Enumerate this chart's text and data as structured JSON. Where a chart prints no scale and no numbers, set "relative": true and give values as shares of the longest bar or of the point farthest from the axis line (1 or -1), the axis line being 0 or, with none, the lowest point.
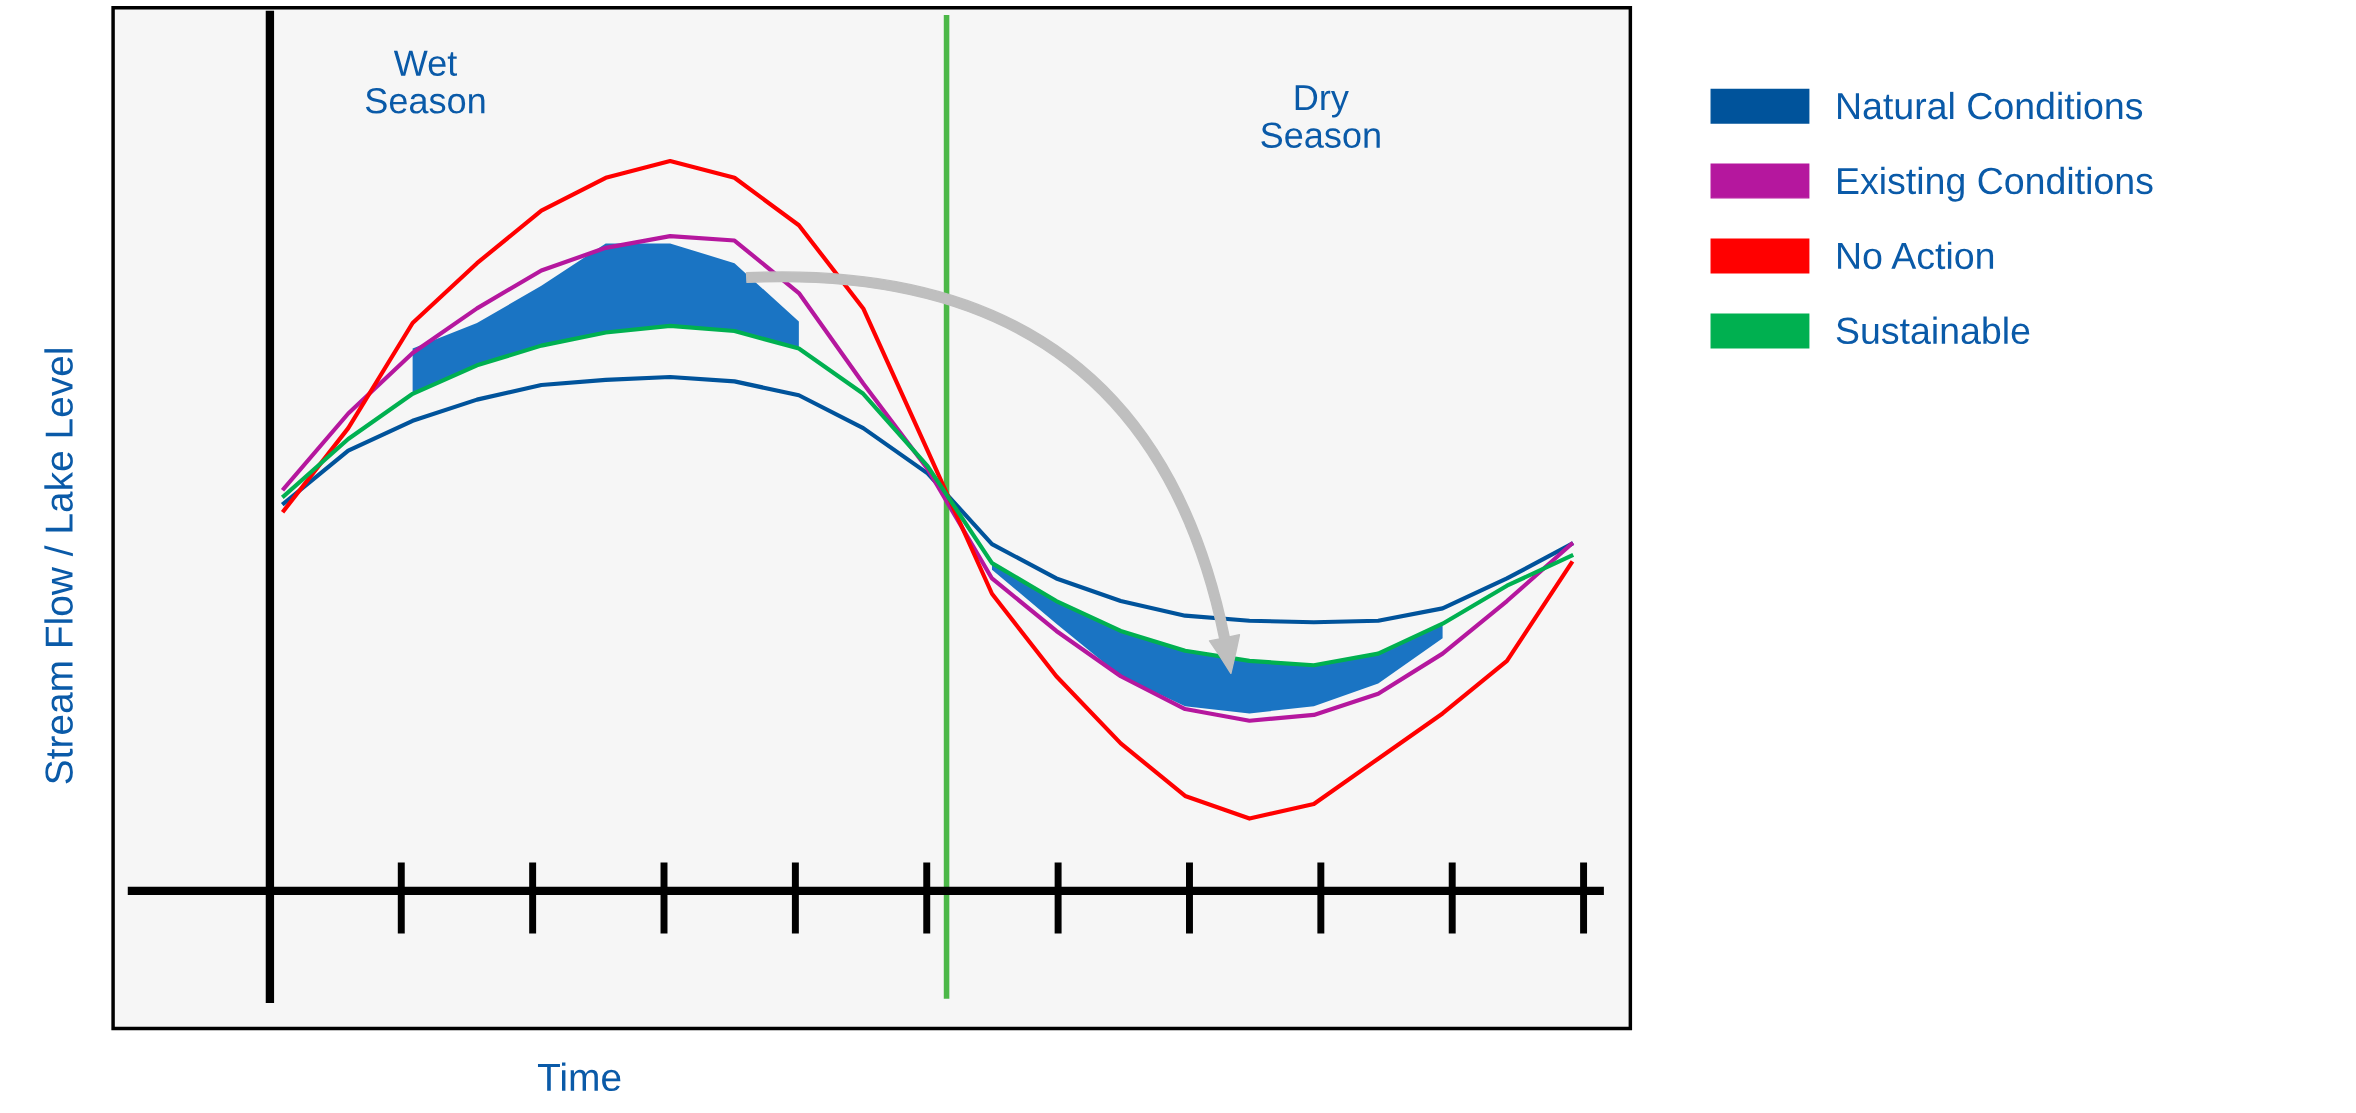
{
  "chart_data": {
    "type": "line",
    "relative": true,
    "xlabel": "Time",
    "ylabel": "Stream Flow / Lake Level",
    "categories": [
      null,
      null,
      null,
      null,
      null,
      null,
      null,
      null,
      null,
      null,
      null,
      null,
      null,
      null,
      null,
      null,
      null,
      null,
      null,
      null,
      null
    ],
    "series": [
      {
        "name": "Natural Conditions",
        "color": "#00539b",
        "values": [
          0.531,
          0.603,
          0.644,
          0.673,
          0.693,
          0.7,
          0.704,
          0.698,
          0.679,
          0.634,
          0.572,
          0.475,
          0.428,
          0.397,
          0.377,
          0.37,
          0.368,
          0.37,
          0.387,
          0.428,
          0.475
        ],
        "upper": [
          null,
          null,
          0.743,
          0.778,
          0.829,
          0.887,
          0.887,
          0.86,
          0.78,
          null,
          null,
          0.449,
          0.397,
          0.356,
          0.329,
          0.315,
          0.309,
          0.325,
          0.366,
          null,
          null
        ],
        "lower": [
          null,
          null,
          0.681,
          0.72,
          0.747,
          0.765,
          0.774,
          0.767,
          0.743,
          null,
          null,
          0.44,
          0.366,
          0.294,
          0.253,
          0.243,
          0.253,
          0.284,
          0.346,
          null,
          null
        ]
      },
      {
        "name": "Existing Conditions",
        "color": "#b5179e",
        "values": [
          0.551,
          0.654,
          0.737,
          0.798,
          0.85,
          0.881,
          0.897,
          0.891,
          0.819,
          0.695,
          0.578,
          0.428,
          0.356,
          0.294,
          0.249,
          0.233,
          0.241,
          0.27,
          0.325,
          0.397,
          0.475
        ]
      },
      {
        "name": "No Action",
        "color": "#ff0000",
        "values": [
          0.521,
          0.634,
          0.778,
          0.86,
          0.932,
          0.977,
          1.0,
          0.977,
          0.912,
          0.798,
          0.603,
          0.407,
          0.294,
          0.202,
          0.13,
          0.099,
          0.119,
          0.181,
          0.243,
          0.315,
          0.449
        ]
      },
      {
        "name": "Sustainable",
        "color": "#00b050",
        "values": [
          0.541,
          0.619,
          0.681,
          0.72,
          0.747,
          0.765,
          0.774,
          0.767,
          0.743,
          0.681,
          0.582,
          0.449,
          0.397,
          0.356,
          0.329,
          0.315,
          0.309,
          0.325,
          0.366,
          0.418,
          0.459
        ]
      }
    ],
    "annotations": [
      "Wet\nSeason",
      "Dry\nSeason"
    ],
    "legend": "right",
    "grid": false,
    "marker": "none",
    "line_style": "solid"
  }
}
